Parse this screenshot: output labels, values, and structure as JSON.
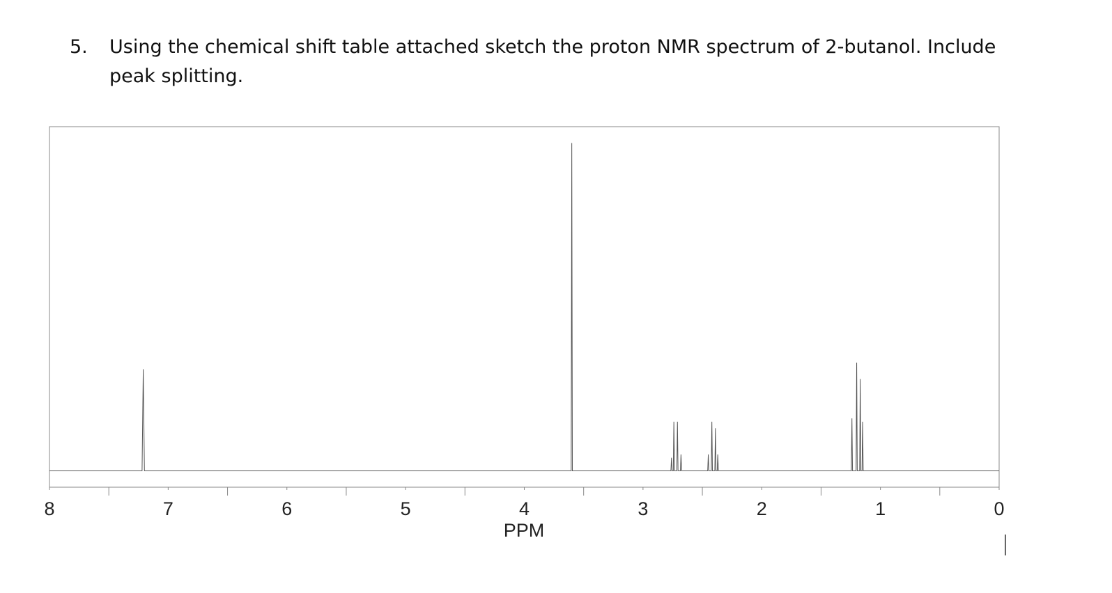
{
  "question": {
    "number": "5.",
    "lines": [
      "Using the chemical shift table attached sketch the proton NMR spectrum of 2-butanol.  Include",
      "peak splitting."
    ]
  },
  "chart_data": {
    "type": "line",
    "xlabel": "PPM",
    "color": "#555555",
    "xlim": [
      8,
      0
    ],
    "ylim": [
      -5,
      105
    ],
    "xticks": [
      8,
      7,
      6,
      5,
      4,
      3,
      2,
      1,
      0
    ],
    "xminorticks": [
      7.5,
      6.5,
      5.5,
      4.5,
      3.5,
      2.5,
      1.5,
      0.5
    ],
    "x": [
      8,
      7.22,
      7.21,
      7.2,
      3.605,
      3.6,
      3.595,
      2.765,
      2.76,
      2.755,
      2.745,
      2.74,
      2.735,
      2.715,
      2.71,
      2.705,
      2.685,
      2.68,
      2.675,
      2.455,
      2.45,
      2.445,
      2.425,
      2.42,
      2.415,
      2.395,
      2.39,
      2.385,
      2.375,
      2.37,
      2.365,
      1.245,
      1.24,
      1.235,
      1.205,
      1.2,
      1.195,
      1.175,
      1.17,
      1.165,
      1.155,
      1.15,
      1.145,
      0
    ],
    "values": [
      0,
      0,
      31,
      0,
      0,
      100,
      0,
      0,
      4,
      0,
      0,
      15,
      0,
      0,
      15,
      0,
      0,
      5,
      0,
      0,
      5,
      0,
      0,
      15,
      0,
      0,
      13,
      0,
      0,
      5,
      0,
      0,
      16,
      0,
      0,
      33,
      0,
      0,
      28,
      0,
      0,
      15,
      0,
      0
    ]
  }
}
